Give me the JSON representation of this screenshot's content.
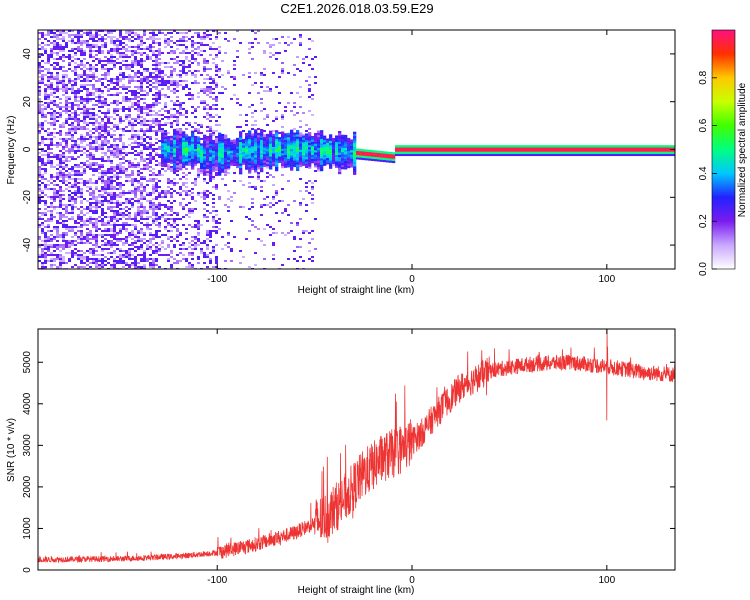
{
  "title": "C2E1.2026.018.03.59.E29",
  "chart_data": [
    {
      "type": "heatmap",
      "xlabel": "Height of straight line (km)",
      "ylabel": "Frequency (Hz)",
      "xlim": [
        -192,
        135
      ],
      "ylim": [
        -50,
        50
      ],
      "xticks": [
        -100,
        0,
        100
      ],
      "yticks": [
        -40,
        -20,
        0,
        20,
        40
      ],
      "colorbar": {
        "label": "Normalized spectral amplitude",
        "range": [
          0,
          1
        ],
        "ticks": [
          "0.0",
          "0.2",
          "0.4",
          "0.6",
          "0.8"
        ],
        "tick_values": [
          0.0,
          0.2,
          0.4,
          0.6,
          0.8
        ]
      },
      "features": {
        "noise_region_end_km": -50,
        "signal_center_hz": 0,
        "strong_tone_start_km": -30
      }
    },
    {
      "type": "line",
      "xlabel": "Height of straight line (km)",
      "ylabel": "SNR (10 * v/v)",
      "xlim": [
        -192,
        135
      ],
      "ylim": [
        0,
        5800
      ],
      "xticks": [
        -100,
        0,
        100
      ],
      "yticks": [
        0,
        1000,
        2000,
        3000,
        4000,
        5000
      ],
      "color": "#ee3333",
      "trend": {
        "x": [
          -192,
          -150,
          -120,
          -100,
          -80,
          -60,
          -45,
          -35,
          -25,
          -15,
          -5,
          5,
          15,
          25,
          40,
          60,
          80,
          100,
          120,
          135
        ],
        "y": [
          250,
          270,
          330,
          420,
          620,
          900,
          1250,
          1700,
          2300,
          2700,
          2900,
          3300,
          3900,
          4400,
          4800,
          4950,
          5000,
          4900,
          4750,
          4700
        ]
      },
      "annotations": {
        "spike_up_x": 100,
        "spike_up_y": 5800,
        "spike_down_x": 100,
        "spike_down_y": 3600
      }
    }
  ]
}
